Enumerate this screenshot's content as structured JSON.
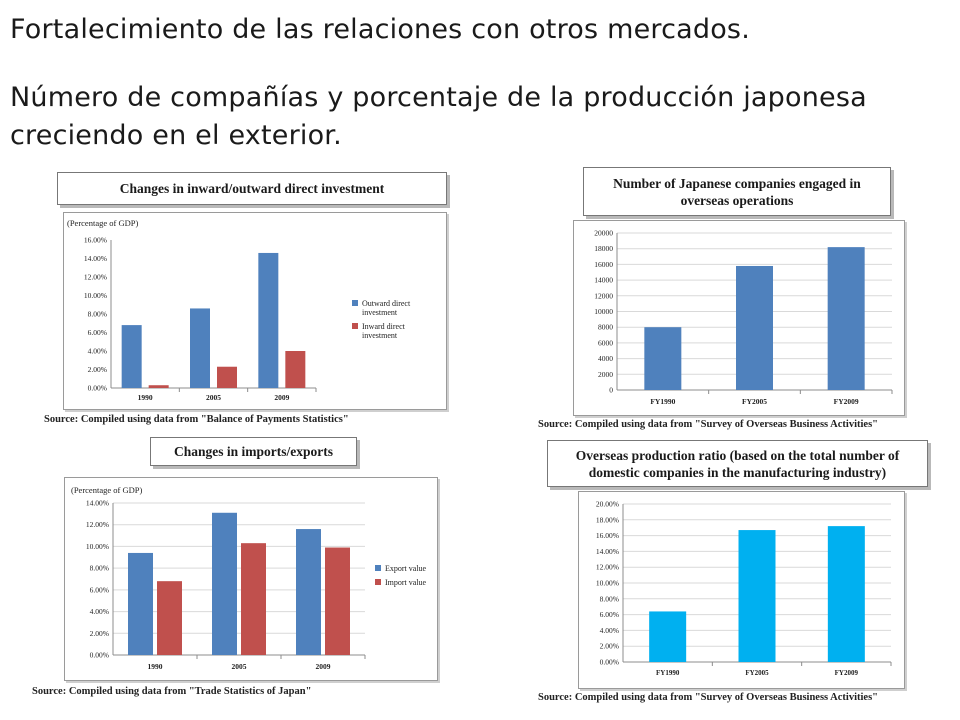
{
  "slide": {
    "heading1": "Fortalecimiento de las relaciones con otros mercados.",
    "heading2": "Número de compañías y porcentaje de la producción japonesa creciendo en el exterior."
  },
  "colors": {
    "blue": "#4f81bd",
    "red": "#c0504d",
    "cyan": "#00b0f0",
    "grid": "#d9d9d9"
  },
  "chart_data": [
    {
      "id": "investment",
      "type": "bar",
      "title": "Changes in inward/outward direct investment",
      "ylabel": "(Percentage of GDP)",
      "categories": [
        "1990",
        "2005",
        "2009"
      ],
      "series": [
        {
          "name": "Outward direct investment",
          "color": "#4f81bd",
          "values": [
            6.8,
            8.6,
            14.6
          ]
        },
        {
          "name": "Inward direct investment",
          "color": "#c0504d",
          "values": [
            0.3,
            2.3,
            4.0
          ]
        }
      ],
      "ylim": [
        0,
        16
      ],
      "yticks": [
        "0.00%",
        "2.00%",
        "4.00%",
        "6.00%",
        "8.00%",
        "10.00%",
        "12.00%",
        "14.00%",
        "16.00%"
      ],
      "grid": false,
      "legend": "right",
      "source": "Source: Compiled using data from \"Balance of Payments Statistics\""
    },
    {
      "id": "companies",
      "type": "bar",
      "title": "Number of Japanese companies engaged in overseas operations",
      "categories": [
        "FY1990",
        "FY2005",
        "FY2009"
      ],
      "series": [
        {
          "name": "",
          "color": "#4f81bd",
          "values": [
            8000,
            15800,
            18200
          ]
        }
      ],
      "ylim": [
        0,
        20000
      ],
      "yticks": [
        "0",
        "2000",
        "4000",
        "6000",
        "8000",
        "10000",
        "12000",
        "14000",
        "16000",
        "18000",
        "20000"
      ],
      "grid": true,
      "legend": "none",
      "source": "Source: Compiled using data from \"Survey of Overseas Business Activities\""
    },
    {
      "id": "trade",
      "type": "bar",
      "title": "Changes in imports/exports",
      "ylabel": "(Percentage of GDP)",
      "categories": [
        "1990",
        "2005",
        "2009"
      ],
      "series": [
        {
          "name": "Export value",
          "color": "#4f81bd",
          "values": [
            9.4,
            13.1,
            11.6
          ]
        },
        {
          "name": "Import value",
          "color": "#c0504d",
          "values": [
            6.8,
            10.3,
            9.9
          ]
        }
      ],
      "ylim": [
        0,
        14
      ],
      "yticks": [
        "0.00%",
        "2.00%",
        "4.00%",
        "6.00%",
        "8.00%",
        "10.00%",
        "12.00%",
        "14.00%"
      ],
      "grid": true,
      "legend": "right",
      "source": "Source: Compiled using data from \"Trade Statistics of Japan\""
    },
    {
      "id": "production",
      "type": "bar",
      "title": "Overseas production ratio (based on the total number of domestic companies in the manufacturing industry)",
      "categories": [
        "FY1990",
        "FY2005",
        "FY2009"
      ],
      "series": [
        {
          "name": "",
          "color": "#00b0f0",
          "values": [
            6.4,
            16.7,
            17.2
          ]
        }
      ],
      "ylim": [
        0,
        20
      ],
      "yticks": [
        "0.00%",
        "2.00%",
        "4.00%",
        "6.00%",
        "8.00%",
        "10.00%",
        "12.00%",
        "14.00%",
        "16.00%",
        "18.00%",
        "20.00%"
      ],
      "grid": true,
      "legend": "none",
      "source": "Source: Compiled using data from \"Survey of Overseas Business Activities\""
    }
  ]
}
